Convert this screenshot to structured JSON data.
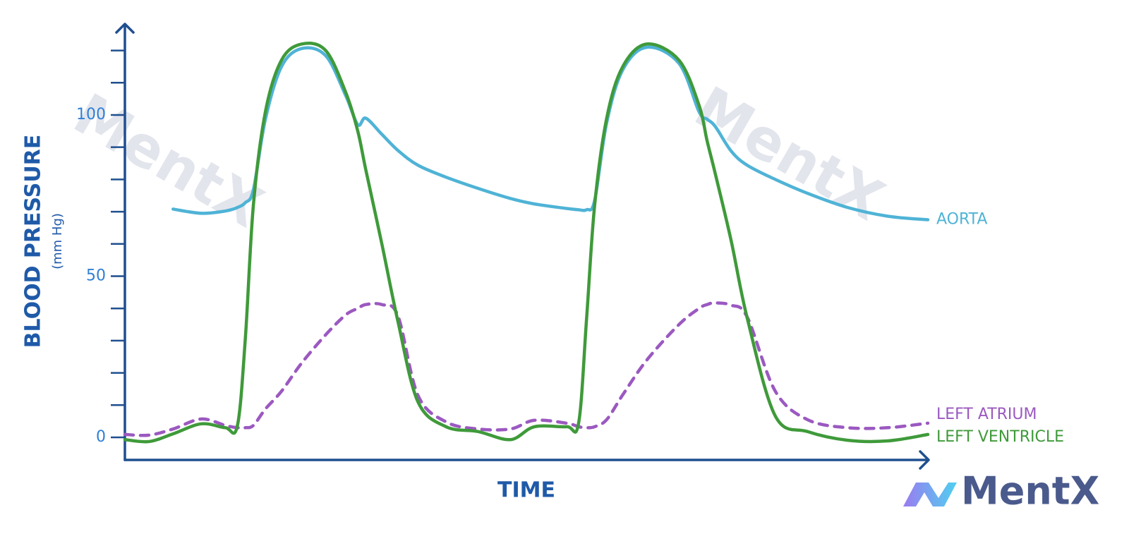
{
  "chart_data": {
    "type": "line",
    "y_label": "BLOOD PRESSURE",
    "y_unit": "(mm Hg)",
    "x_label": "TIME",
    "watermark": "MentX",
    "xlim": [
      0,
      100
    ],
    "ylim": [
      -7,
      128
    ],
    "yticks": [
      0,
      50,
      100
    ],
    "minor_yticks": [
      10,
      20,
      30,
      40,
      60,
      70,
      80,
      90,
      110,
      120
    ],
    "x": [
      0,
      3,
      6,
      9.5,
      12.5,
      14,
      15,
      16,
      17.5,
      19.5,
      22,
      25,
      27.5,
      29,
      30,
      32,
      34,
      36.5,
      40,
      44,
      48,
      51,
      55,
      56.5,
      57.5,
      58.5,
      60,
      62,
      65,
      69,
      71.5,
      72.5,
      73.5,
      75.5,
      77.5,
      81,
      85,
      90,
      95,
      100
    ],
    "series": [
      {
        "name": "AORTA",
        "color": "#4fb3d6",
        "dashed": false,
        "values": [
          null,
          null,
          70.8,
          69.5,
          70.2,
          71.3,
          72.8,
          76.8,
          98.7,
          115,
          120.6,
          118.4,
          106,
          97,
          99,
          94,
          89,
          84.4,
          80.7,
          77.2,
          74.1,
          72.4,
          71,
          70.6,
          70.6,
          73.5,
          97.6,
          114,
          121,
          116,
          101,
          98.7,
          96.5,
          88.8,
          84.4,
          80,
          75.7,
          71.3,
          68.6,
          67.5
        ]
      },
      {
        "name": "LEFT ATRIUM",
        "color": "#9b59c0",
        "dashed": true,
        "values": [
          0.9,
          0.7,
          2.6,
          5.7,
          3.7,
          3,
          3,
          3.7,
          8.8,
          14.3,
          23,
          31.8,
          38,
          40,
          41.2,
          41.2,
          37.7,
          13,
          4.8,
          2.6,
          2.6,
          5.3,
          4.4,
          3.3,
          3,
          3.3,
          5.5,
          13.2,
          24,
          35,
          40,
          41.2,
          41.7,
          41,
          37.3,
          14.3,
          5.5,
          3,
          3,
          4.4
        ]
      },
      {
        "name": "LEFT VENTRICLE",
        "color": "#3f9a3a",
        "dashed": false,
        "values": [
          -0.7,
          -1.3,
          1.1,
          4.2,
          3,
          3.5,
          30.7,
          72,
          101,
          117,
          122,
          120,
          107,
          95,
          83,
          60,
          36,
          11,
          3.3,
          1.8,
          -0.7,
          3.3,
          3.3,
          4.4,
          37,
          72,
          99,
          115,
          122,
          117,
          103,
          92,
          82,
          61,
          37,
          6.6,
          1.8,
          -0.9,
          -1.1,
          0.9
        ]
      }
    ]
  }
}
